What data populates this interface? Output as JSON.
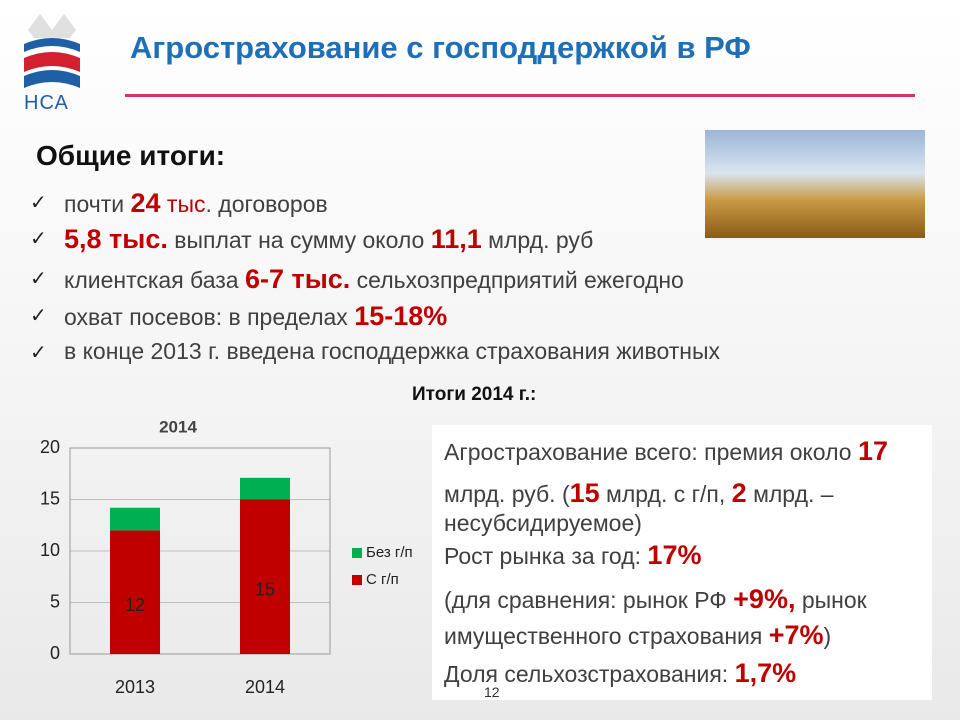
{
  "logo": "НСА",
  "title": "Агрострахование с господдержкой в РФ",
  "summary_heading": "Общие итоги:",
  "bullets": [
    [
      {
        "text": "почти "
      },
      {
        "text": "24",
        "red": true,
        "bold": true
      },
      {
        "text": " тыс",
        "red": true
      },
      {
        "text": ". договоров"
      }
    ],
    [
      {
        "text": "5,8 тыс.",
        "red": true,
        "bold": true
      },
      {
        "text": " выплат на сумму около "
      },
      {
        "text": "11,1",
        "red": true,
        "bold": true
      },
      {
        "text": " млрд. руб"
      }
    ],
    [
      {
        "text": "клиентская база "
      },
      {
        "text": "6-7 тыс.",
        "red": true,
        "bold": true
      },
      {
        "text": " сельхозпредприятий ежегодно"
      }
    ],
    [
      {
        "text": "охват посевов: в пределах "
      },
      {
        "text": "15-18%",
        "red": true,
        "bold": true
      }
    ],
    [
      {
        "text": "в конце 2013 г. введена господдержка страхования животных"
      }
    ]
  ],
  "results_heading": "Итоги 2014 г.:",
  "box_lines": [
    [
      {
        "text": "Агрострахование всего: премия около "
      },
      {
        "text": "17",
        "red": true,
        "bold": true
      }
    ],
    [
      {
        "text": "млрд. руб. ("
      },
      {
        "text": "15",
        "red": true,
        "bold": true
      },
      {
        "text": " млрд. с г/п, "
      },
      {
        "text": "2",
        "red": true,
        "bold": true
      },
      {
        "text": " млрд. –"
      }
    ],
    [
      {
        "text": "несубсидируемое)"
      }
    ],
    [
      {
        "text": "Рост рынка за год: "
      },
      {
        "text": "17%",
        "red": true,
        "bold": true
      }
    ],
    [
      {
        "text": "(для сравнения: рынок РФ "
      },
      {
        "text": "+9%,",
        "red": true,
        "bold": true
      },
      {
        "text": "  рынок"
      }
    ],
    [
      {
        "text": "имущественного страхования "
      },
      {
        "text": "+7%",
        "red": true,
        "bold": true
      },
      {
        "text": ")"
      }
    ],
    [
      {
        "text": "Доля сельхозстрахования: "
      },
      {
        "text": "1,7%",
        "red": true,
        "bold": true
      }
    ]
  ],
  "page_number": "12",
  "chart_data": {
    "type": "stacked-bar",
    "title": "2014",
    "categories": [
      "2013",
      "2014"
    ],
    "series": [
      {
        "name": "С г/п",
        "color": "#c00000",
        "values": [
          12,
          15
        ]
      },
      {
        "name": "Без г/п",
        "color": "#00b050",
        "values": [
          2.2,
          2.1
        ]
      }
    ],
    "labeled_series": [
      0
    ],
    "ylim": [
      0,
      20
    ],
    "yticks": [
      0,
      5,
      10,
      15,
      20
    ],
    "grid": true,
    "legend": "right"
  }
}
